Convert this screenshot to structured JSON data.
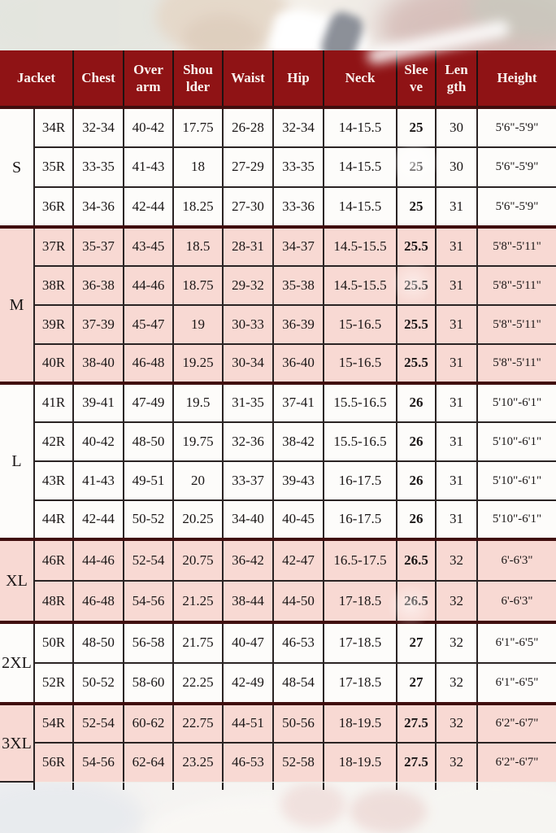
{
  "palette": {
    "header_bg": "#8f1315",
    "header_text": "#faf3ef",
    "row_pink": "#f8d9d3",
    "row_white": "#fdfcfa",
    "grid_line": "#2b2424",
    "group_line": "#400e0e"
  },
  "chart_data": {
    "type": "table",
    "title": "Jacket size chart",
    "columns": [
      "Jacket",
      "Chest",
      "Over arm",
      "Shou lder",
      "Waist",
      "Hip",
      "Neck",
      "Slee ve",
      "Len gth",
      "Height"
    ],
    "groups": [
      {
        "size": "S",
        "rows": [
          [
            "34R",
            "32-34",
            "40-42",
            "17.75",
            "26-28",
            "32-34",
            "14-15.5",
            "25",
            "30",
            "5'6\"-5'9\""
          ],
          [
            "35R",
            "33-35",
            "41-43",
            "18",
            "27-29",
            "33-35",
            "14-15.5",
            "25",
            "30",
            "5'6\"-5'9\""
          ],
          [
            "36R",
            "34-36",
            "42-44",
            "18.25",
            "27-30",
            "33-36",
            "14-15.5",
            "25",
            "31",
            "5'6\"-5'9\""
          ]
        ]
      },
      {
        "size": "M",
        "rows": [
          [
            "37R",
            "35-37",
            "43-45",
            "18.5",
            "28-31",
            "34-37",
            "14.5-15.5",
            "25.5",
            "31",
            "5'8\"-5'11\""
          ],
          [
            "38R",
            "36-38",
            "44-46",
            "18.75",
            "29-32",
            "35-38",
            "14.5-15.5",
            "25.5",
            "31",
            "5'8\"-5'11\""
          ],
          [
            "39R",
            "37-39",
            "45-47",
            "19",
            "30-33",
            "36-39",
            "15-16.5",
            "25.5",
            "31",
            "5'8\"-5'11\""
          ],
          [
            "40R",
            "38-40",
            "46-48",
            "19.25",
            "30-34",
            "36-40",
            "15-16.5",
            "25.5",
            "31",
            "5'8\"-5'11\""
          ]
        ]
      },
      {
        "size": "L",
        "rows": [
          [
            "41R",
            "39-41",
            "47-49",
            "19.5",
            "31-35",
            "37-41",
            "15.5-16.5",
            "26",
            "31",
            "5'10\"-6'1\""
          ],
          [
            "42R",
            "40-42",
            "48-50",
            "19.75",
            "32-36",
            "38-42",
            "15.5-16.5",
            "26",
            "31",
            "5'10\"-6'1\""
          ],
          [
            "43R",
            "41-43",
            "49-51",
            "20",
            "33-37",
            "39-43",
            "16-17.5",
            "26",
            "31",
            "5'10\"-6'1\""
          ],
          [
            "44R",
            "42-44",
            "50-52",
            "20.25",
            "34-40",
            "40-45",
            "16-17.5",
            "26",
            "31",
            "5'10\"-6'1\""
          ]
        ]
      },
      {
        "size": "XL",
        "rows": [
          [
            "46R",
            "44-46",
            "52-54",
            "20.75",
            "36-42",
            "42-47",
            "16.5-17.5",
            "26.5",
            "32",
            "6'-6'3\""
          ],
          [
            "48R",
            "46-48",
            "54-56",
            "21.25",
            "38-44",
            "44-50",
            "17-18.5",
            "26.5",
            "32",
            "6'-6'3\""
          ]
        ]
      },
      {
        "size": "2XL",
        "rows": [
          [
            "50R",
            "48-50",
            "56-58",
            "21.75",
            "40-47",
            "46-53",
            "17-18.5",
            "27",
            "32",
            "6'1\"-6'5\""
          ],
          [
            "52R",
            "50-52",
            "58-60",
            "22.25",
            "42-49",
            "48-54",
            "17-18.5",
            "27",
            "32",
            "6'1\"-6'5\""
          ]
        ]
      },
      {
        "size": "3XL",
        "rows": [
          [
            "54R",
            "52-54",
            "60-62",
            "22.75",
            "44-51",
            "50-56",
            "18-19.5",
            "27.5",
            "32",
            "6'2\"-6'7\""
          ],
          [
            "56R",
            "54-56",
            "62-64",
            "23.25",
            "46-53",
            "52-58",
            "18-19.5",
            "27.5",
            "32",
            "6'2\"-6'7\""
          ]
        ]
      }
    ]
  }
}
